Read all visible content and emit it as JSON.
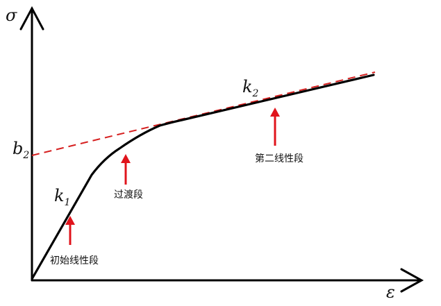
{
  "axes": {
    "y_label": "σ",
    "x_label": "ε"
  },
  "symbols": {
    "b2": {
      "base": "b",
      "sub": "2"
    },
    "k1": {
      "base": "k",
      "sub": "1"
    },
    "k2": {
      "base": "k",
      "sub": "2"
    }
  },
  "annotations": {
    "initial_linear": "初始线性段",
    "transition": "过渡段",
    "second_linear": "第二线性段"
  },
  "colors": {
    "curve": "#000000",
    "tangent_dashed": "#d62020",
    "arrow": "#e0141c"
  }
}
